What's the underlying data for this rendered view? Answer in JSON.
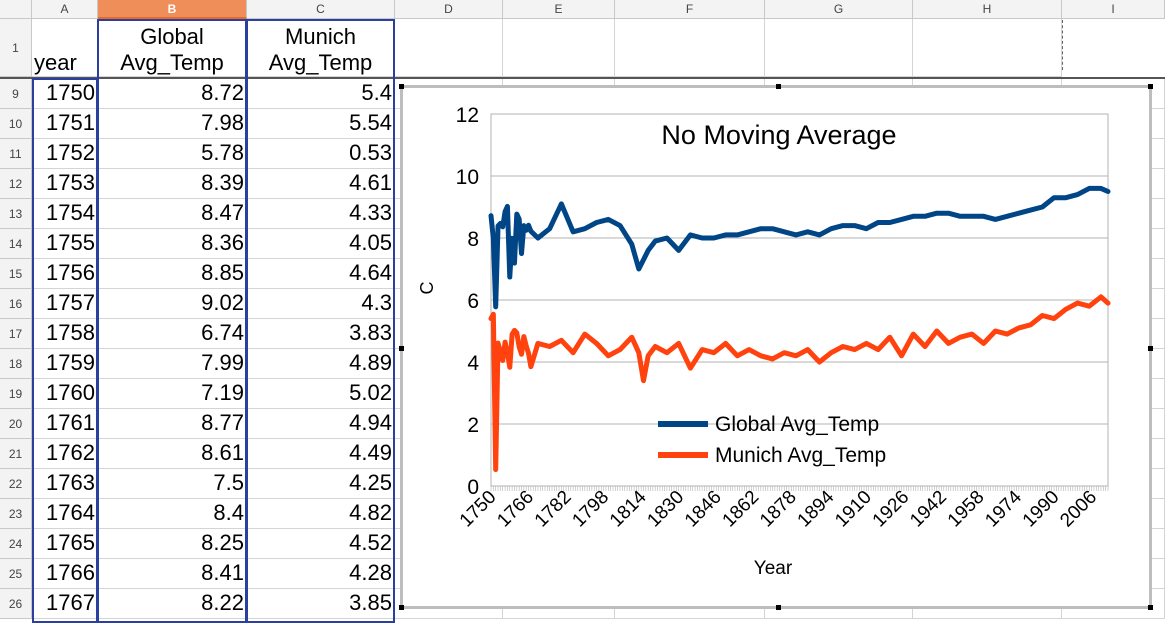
{
  "columns": [
    "A",
    "B",
    "C",
    "D",
    "E",
    "F",
    "G",
    "H",
    "I"
  ],
  "selected_column": "B",
  "header_row": {
    "row_number": "1",
    "a": "year",
    "b_line1": "Global",
    "b_line2": "Avg_Temp",
    "c_line1": "Munich",
    "c_line2": "Avg_Temp"
  },
  "rows": [
    {
      "n": "9",
      "year": "1750",
      "global": "8.72",
      "munich": "5.4"
    },
    {
      "n": "10",
      "year": "1751",
      "global": "7.98",
      "munich": "5.54"
    },
    {
      "n": "11",
      "year": "1752",
      "global": "5.78",
      "munich": "0.53"
    },
    {
      "n": "12",
      "year": "1753",
      "global": "8.39",
      "munich": "4.61"
    },
    {
      "n": "13",
      "year": "1754",
      "global": "8.47",
      "munich": "4.33"
    },
    {
      "n": "14",
      "year": "1755",
      "global": "8.36",
      "munich": "4.05"
    },
    {
      "n": "15",
      "year": "1756",
      "global": "8.85",
      "munich": "4.64"
    },
    {
      "n": "16",
      "year": "1757",
      "global": "9.02",
      "munich": "4.3"
    },
    {
      "n": "17",
      "year": "1758",
      "global": "6.74",
      "munich": "3.83"
    },
    {
      "n": "18",
      "year": "1759",
      "global": "7.99",
      "munich": "4.89"
    },
    {
      "n": "19",
      "year": "1760",
      "global": "7.19",
      "munich": "5.02"
    },
    {
      "n": "20",
      "year": "1761",
      "global": "8.77",
      "munich": "4.94"
    },
    {
      "n": "21",
      "year": "1762",
      "global": "8.61",
      "munich": "4.49"
    },
    {
      "n": "22",
      "year": "1763",
      "global": "7.5",
      "munich": "4.25"
    },
    {
      "n": "23",
      "year": "1764",
      "global": "8.4",
      "munich": "4.82"
    },
    {
      "n": "24",
      "year": "1765",
      "global": "8.25",
      "munich": "4.52"
    },
    {
      "n": "25",
      "year": "1766",
      "global": "8.41",
      "munich": "4.28"
    },
    {
      "n": "26",
      "year": "1767",
      "global": "8.22",
      "munich": "3.85"
    }
  ],
  "chart_data": {
    "type": "line",
    "title": "No Moving Average",
    "xlabel": "Year",
    "ylabel": "C",
    "ylim": [
      0,
      12
    ],
    "yticks": [
      0,
      2,
      4,
      6,
      8,
      10,
      12
    ],
    "xtick_labels": [
      "1750",
      "1766",
      "1782",
      "1798",
      "1814",
      "1830",
      "1846",
      "1862",
      "1878",
      "1894",
      "1910",
      "1926",
      "1942",
      "1958",
      "1974",
      "1990",
      "2006"
    ],
    "grid": true,
    "legend_position": "inside-bottom-center",
    "x": [
      1750,
      1751,
      1752,
      1753,
      1754,
      1755,
      1756,
      1757,
      1758,
      1759,
      1760,
      1761,
      1762,
      1763,
      1764,
      1765,
      1766,
      1767,
      1770,
      1775,
      1780,
      1785,
      1790,
      1795,
      1800,
      1805,
      1810,
      1813,
      1815,
      1817,
      1820,
      1825,
      1830,
      1835,
      1840,
      1845,
      1850,
      1855,
      1860,
      1865,
      1870,
      1875,
      1880,
      1885,
      1890,
      1895,
      1900,
      1905,
      1910,
      1915,
      1920,
      1925,
      1930,
      1935,
      1940,
      1945,
      1950,
      1955,
      1960,
      1965,
      1970,
      1975,
      1980,
      1985,
      1990,
      1995,
      2000,
      2005,
      2010,
      2013
    ],
    "series": [
      {
        "name": "Global Avg_Temp",
        "color": "#004586",
        "values": [
          8.72,
          7.98,
          5.78,
          8.39,
          8.47,
          8.36,
          8.85,
          9.02,
          6.74,
          7.99,
          7.19,
          8.77,
          8.61,
          7.5,
          8.4,
          8.25,
          8.41,
          8.22,
          8.0,
          8.3,
          9.1,
          8.2,
          8.3,
          8.5,
          8.6,
          8.4,
          7.8,
          7.0,
          7.3,
          7.6,
          7.9,
          8.0,
          7.6,
          8.1,
          8.0,
          8.0,
          8.1,
          8.1,
          8.2,
          8.3,
          8.3,
          8.2,
          8.1,
          8.2,
          8.1,
          8.3,
          8.4,
          8.4,
          8.3,
          8.5,
          8.5,
          8.6,
          8.7,
          8.7,
          8.8,
          8.8,
          8.7,
          8.7,
          8.7,
          8.6,
          8.7,
          8.8,
          8.9,
          9.0,
          9.3,
          9.3,
          9.4,
          9.6,
          9.6,
          9.5
        ]
      },
      {
        "name": "Munich Avg_Temp",
        "color": "#ff420e",
        "values": [
          5.4,
          5.54,
          0.53,
          4.61,
          4.33,
          4.05,
          4.64,
          4.3,
          3.83,
          4.89,
          5.02,
          4.94,
          4.49,
          4.25,
          4.82,
          4.52,
          4.28,
          3.85,
          4.6,
          4.5,
          4.7,
          4.3,
          4.9,
          4.6,
          4.2,
          4.4,
          4.8,
          4.3,
          3.4,
          4.2,
          4.5,
          4.3,
          4.6,
          3.8,
          4.4,
          4.3,
          4.6,
          4.2,
          4.4,
          4.2,
          4.1,
          4.3,
          4.2,
          4.4,
          4.0,
          4.3,
          4.5,
          4.4,
          4.6,
          4.4,
          4.8,
          4.2,
          4.9,
          4.5,
          5.0,
          4.6,
          4.8,
          4.9,
          4.6,
          5.0,
          4.9,
          5.1,
          5.2,
          5.5,
          5.4,
          5.7,
          5.9,
          5.8,
          6.1,
          5.9
        ]
      }
    ]
  }
}
